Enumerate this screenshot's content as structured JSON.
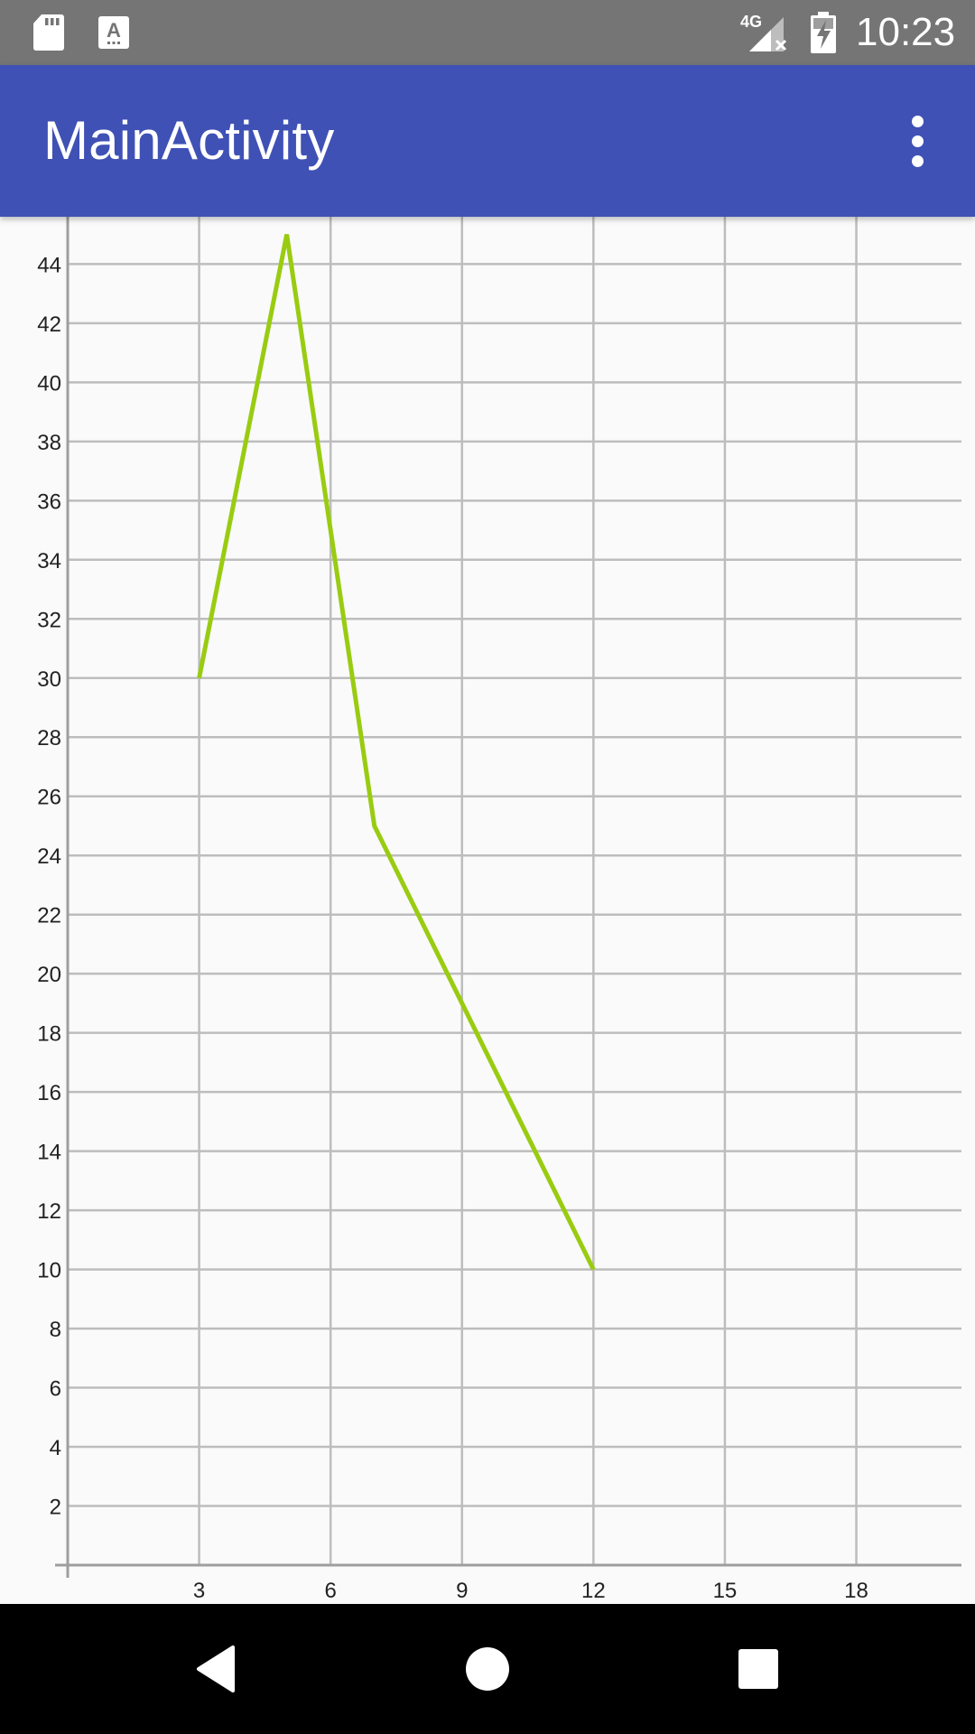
{
  "status_bar": {
    "time": "10:23",
    "network_label": "4G",
    "icons": [
      "sd-card-icon",
      "keyboard-a-icon",
      "cellular-signal-icon",
      "battery-charging-icon"
    ],
    "background": "#757575"
  },
  "app_bar": {
    "title": "MainActivity",
    "background": "#3f51b5",
    "menu_icon": "more-vert-icon"
  },
  "chart_data": {
    "type": "line",
    "x": [
      3,
      5,
      7,
      12
    ],
    "series": [
      {
        "values": [
          30,
          45,
          25,
          10
        ],
        "color": "#99cc11"
      }
    ],
    "xlim": [
      0,
      20.4
    ],
    "ylim": [
      0,
      45.6
    ],
    "x_ticks": [
      3,
      6,
      9,
      12,
      15,
      18
    ],
    "y_ticks": [
      2,
      4,
      6,
      8,
      10,
      12,
      14,
      16,
      18,
      20,
      22,
      24,
      26,
      28,
      30,
      32,
      34,
      36,
      38,
      40,
      42,
      44
    ],
    "grid": true,
    "grid_color": "#bdbdbd",
    "axis_color": "#9e9e9e"
  },
  "nav_bar": {
    "back_icon": "back-triangle-icon",
    "home_icon": "home-circle-icon",
    "recents_icon": "recents-square-icon"
  }
}
